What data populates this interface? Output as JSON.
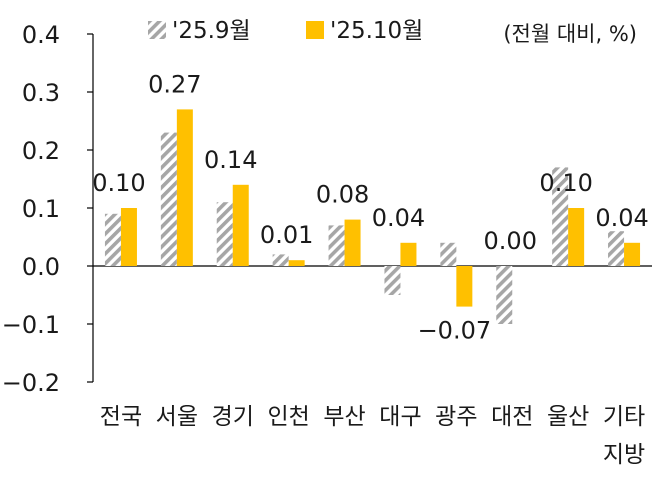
{
  "chart_data": {
    "type": "bar",
    "unit_note": "(전월 대비, %)",
    "categories": [
      "전국",
      "서울",
      "경기",
      "인천",
      "부산",
      "대구",
      "광주",
      "대전",
      "울산",
      "기타 지방"
    ],
    "series": [
      {
        "name": "'25.9월",
        "values": [
          0.09,
          0.23,
          0.11,
          0.02,
          0.07,
          -0.05,
          0.04,
          -0.1,
          0.17,
          0.06
        ],
        "color": "#a6a6a6",
        "pattern": "diagonal-hatch"
      },
      {
        "name": "'25.10월",
        "values": [
          0.1,
          0.27,
          0.14,
          0.01,
          0.08,
          0.04,
          -0.07,
          0.0,
          0.1,
          0.04
        ],
        "color": "#ffc000",
        "pattern": "solid"
      }
    ],
    "data_labels": {
      "series": "'25.10월",
      "values": [
        "0.10",
        "0.27",
        "0.14",
        "0.01",
        "0.08",
        "0.04",
        "−0.07",
        "0.00",
        "0.10",
        "0.04"
      ]
    },
    "y_ticks": [
      "0.4",
      "0.3",
      "0.2",
      "0.1",
      "0.0",
      "−0.1",
      "−0.2"
    ],
    "y_tick_values": [
      0.4,
      0.3,
      0.2,
      0.1,
      0.0,
      -0.1,
      -0.2
    ],
    "ylim": [
      -0.2,
      0.4
    ],
    "title": "",
    "xlabel": "",
    "ylabel": "",
    "grid": false,
    "legend": "top"
  }
}
